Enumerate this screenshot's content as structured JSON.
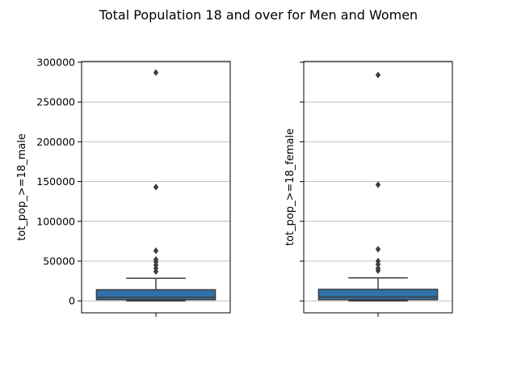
{
  "chart_data": {
    "title": "Total Population 18 and over for Men and Women",
    "type": "box",
    "shared_y": true,
    "ylim": [
      -15000,
      301000
    ],
    "yticks": [
      0,
      50000,
      100000,
      150000,
      200000,
      250000,
      300000
    ],
    "ytick_labels": [
      "0",
      "50000",
      "100000",
      "150000",
      "200000",
      "250000",
      "300000"
    ],
    "grid": "horizontal",
    "box_color": "#2f71a8",
    "panels": [
      {
        "ylabel": "tot_pop_>=18_male",
        "box": {
          "min": 0,
          "q1": 1500,
          "median": 4500,
          "q3": 14000,
          "whisker_high": 28500
        },
        "outliers": [
          37000,
          41000,
          45000,
          49000,
          52000,
          63000,
          143000,
          287000
        ]
      },
      {
        "ylabel": "tot_pop_>=18_female",
        "box": {
          "min": 0,
          "q1": 1500,
          "median": 5000,
          "q3": 14500,
          "whisker_high": 29000
        },
        "outliers": [
          38000,
          41000,
          46000,
          50000,
          65000,
          146000,
          284000
        ]
      }
    ]
  }
}
